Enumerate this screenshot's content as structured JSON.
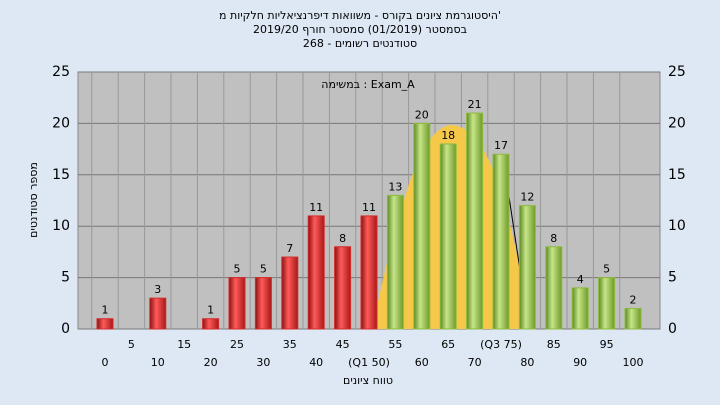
{
  "chart_data": {
    "type": "bar",
    "title": "היסטוגרמת ציונים בקורס - משוואות דיפרנציאליות חלקיות מ'",
    "subtitle": "בסמסטר  (01/2019)  סמסטר חורף 2019/20",
    "subtitle2": "סטודנטים רשומים - 268",
    "annotation": "במשימה : Exam_A",
    "ylabel": "מספר סטודנטים",
    "xlabel": "טווח ציונים",
    "categories": [
      "0",
      "5",
      "10",
      "15",
      "20",
      "25",
      "30",
      "35",
      "40",
      "45",
      "(Q1 50)",
      "55",
      "60",
      "65",
      "70",
      "(Q3 75)",
      "80",
      "85",
      "90",
      "95",
      "100"
    ],
    "values": [
      1,
      0,
      3,
      0,
      1,
      5,
      5,
      7,
      11,
      8,
      11,
      13,
      20,
      18,
      21,
      17,
      12,
      8,
      4,
      5,
      2
    ],
    "colors": [
      "#d42b2b",
      "#d42b2b",
      "#d42b2b",
      "#d42b2b",
      "#d42b2b",
      "#d42b2b",
      "#d42b2b",
      "#d42b2b",
      "#d42b2b",
      "#d42b2b",
      "#d42b2b",
      "#8dbb3c",
      "#8dbb3c",
      "#8dbb3c",
      "#8dbb3c",
      "#8dbb3c",
      "#8dbb3c",
      "#8dbb3c",
      "#8dbb3c",
      "#8dbb3c",
      "#8dbb3c"
    ],
    "ylim": [
      0,
      25
    ],
    "yticks": [
      0,
      5,
      10,
      15,
      20,
      25
    ],
    "grid": true
  }
}
